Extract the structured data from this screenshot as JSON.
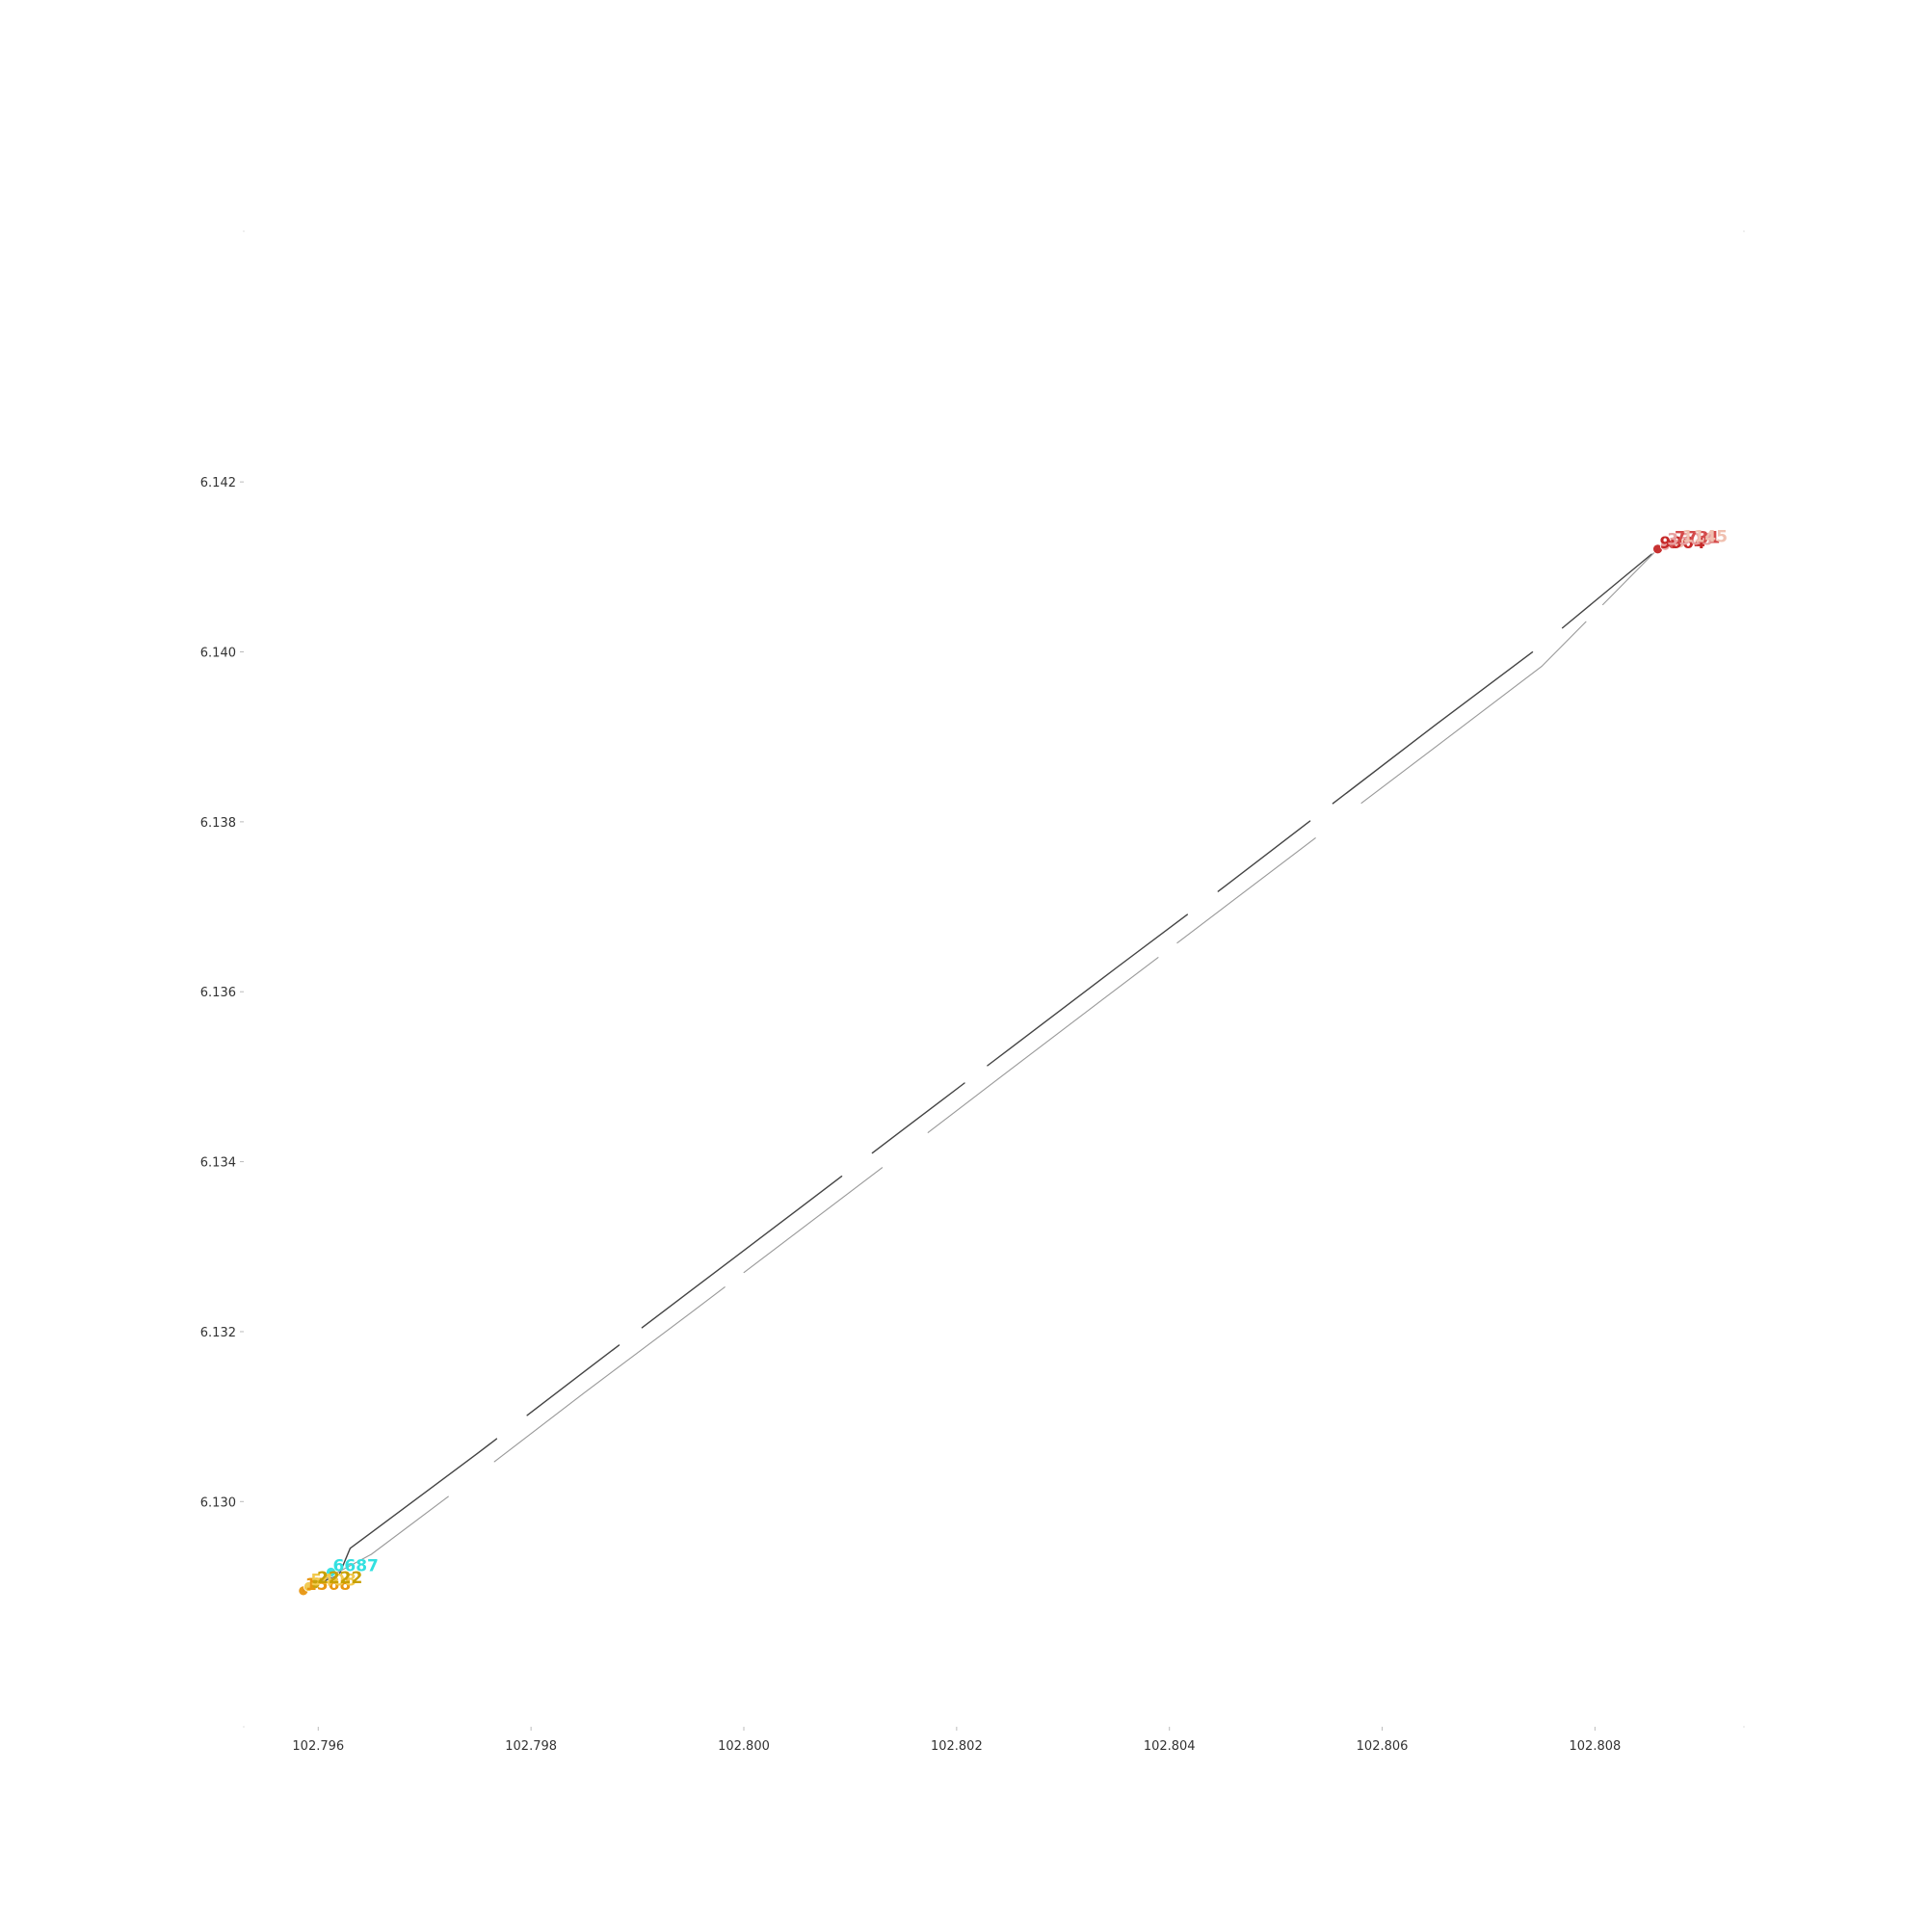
{
  "chart_data": {
    "type": "line",
    "title": "",
    "xlabel": "",
    "ylabel": "",
    "xlim": [
      102.7953,
      102.8094
    ],
    "ylim": [
      6.12735,
      6.14495
    ],
    "x_ticks": [
      "102.796",
      "102.798",
      "102.800",
      "102.802",
      "102.804",
      "102.806",
      "102.808"
    ],
    "x_tick_values": [
      102.796,
      102.798,
      102.8,
      102.802,
      102.804,
      102.806,
      102.808
    ],
    "y_ticks": [
      "6.130",
      "6.132",
      "6.134",
      "6.136",
      "6.138",
      "6.140",
      "6.142"
    ],
    "y_tick_values": [
      6.13,
      6.132,
      6.134,
      6.136,
      6.138,
      6.14,
      6.142
    ],
    "grid": false,
    "legend": "none",
    "series": [
      {
        "line_color": "#444444",
        "x": [
          102.79586,
          102.79603,
          102.7962,
          102.7963,
          102.7975,
          102.7985,
          102.7995,
          102.8005,
          102.8015,
          102.8025,
          102.8035,
          102.8045,
          102.8055,
          102.8065,
          102.8075,
          102.80859,
          102.8088
        ],
        "y": [
          6.12895,
          6.12905,
          6.12915,
          6.12945,
          6.13057,
          6.13153,
          6.13248,
          6.13343,
          6.13438,
          6.13533,
          6.13628,
          6.13722,
          6.13818,
          6.13914,
          6.14008,
          6.14121,
          6.14128
        ]
      },
      {
        "line_color": "#999999",
        "x": [
          102.79586,
          102.7965,
          102.7975,
          102.7985,
          102.7995,
          102.8005,
          102.8015,
          102.8025,
          102.8035,
          102.8045,
          102.8055,
          102.8065,
          102.8075,
          102.80859
        ],
        "y": [
          6.12895,
          6.12938,
          6.13032,
          6.13128,
          6.13222,
          6.13317,
          6.13412,
          6.13508,
          6.13603,
          6.13698,
          6.13793,
          6.13888,
          6.13983,
          6.14121
        ]
      }
    ],
    "points": [
      {
        "label": "1568",
        "x": 102.79586,
        "y": 6.12895,
        "color": "#e8960f"
      },
      {
        "label": "5408",
        "x": 102.79591,
        "y": 6.129,
        "color": "#f2c94c"
      },
      {
        "label": "2222",
        "x": 102.79597,
        "y": 6.12903,
        "color": "#c8a000"
      },
      {
        "label": "6687",
        "x": 102.79612,
        "y": 6.12917,
        "color": "#33e0e0"
      },
      {
        "label": "9904",
        "x": 102.80859,
        "y": 6.14121,
        "color": "#c62828"
      },
      {
        "label": "3508",
        "x": 102.80866,
        "y": 6.14125,
        "color": "#e8a0a0"
      },
      {
        "label": "7731",
        "x": 102.80873,
        "y": 6.14127,
        "color": "#d44a4a"
      },
      {
        "label": "1145",
        "x": 102.8088,
        "y": 6.14128,
        "color": "#f0c0b0"
      }
    ]
  }
}
